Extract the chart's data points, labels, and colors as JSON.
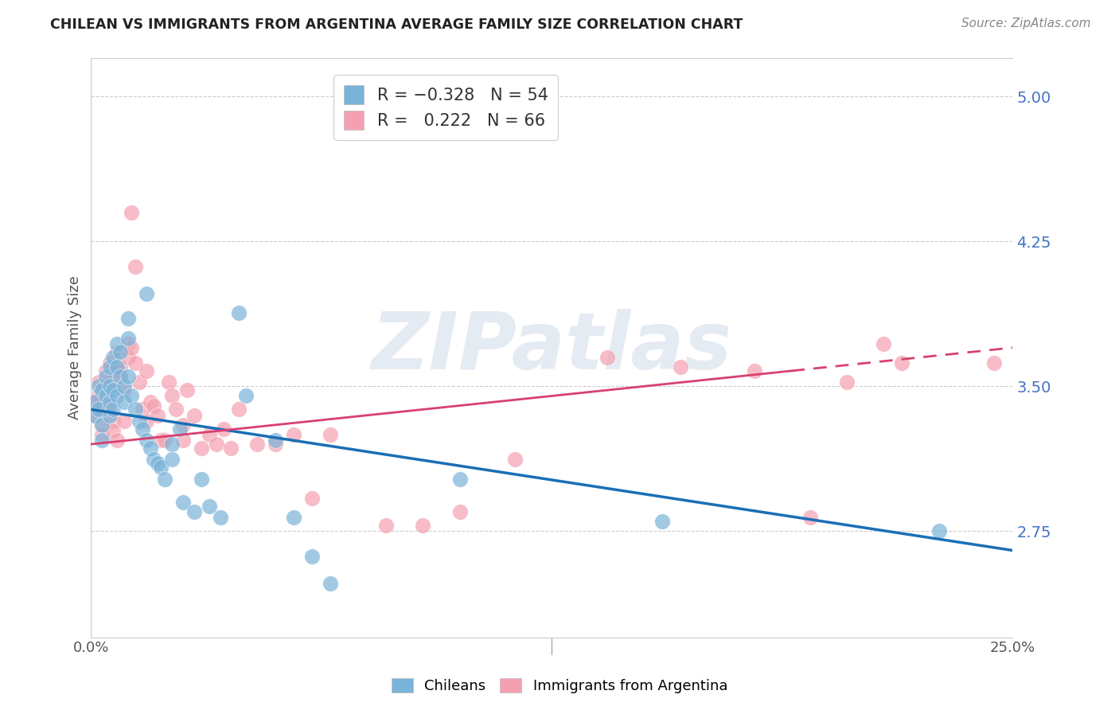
{
  "title": "CHILEAN VS IMMIGRANTS FROM ARGENTINA AVERAGE FAMILY SIZE CORRELATION CHART",
  "source": "Source: ZipAtlas.com",
  "ylabel": "Average Family Size",
  "yticks": [
    2.75,
    3.5,
    4.25,
    5.0
  ],
  "ymin": 2.2,
  "ymax": 5.2,
  "xmin": 0.0,
  "xmax": 0.25,
  "watermark": "ZIPatlas",
  "chileans_color": "#7ab3d9",
  "argentina_color": "#f4a0b0",
  "line_blue": "#1a6fb5",
  "line_pink": "#d94070",
  "chileans": {
    "x": [
      0.001,
      0.001,
      0.002,
      0.002,
      0.003,
      0.003,
      0.003,
      0.004,
      0.004,
      0.005,
      0.005,
      0.005,
      0.005,
      0.006,
      0.006,
      0.006,
      0.007,
      0.007,
      0.007,
      0.008,
      0.008,
      0.009,
      0.009,
      0.01,
      0.01,
      0.01,
      0.011,
      0.012,
      0.013,
      0.014,
      0.015,
      0.015,
      0.016,
      0.017,
      0.018,
      0.019,
      0.02,
      0.022,
      0.022,
      0.024,
      0.025,
      0.028,
      0.03,
      0.032,
      0.035,
      0.04,
      0.042,
      0.05,
      0.055,
      0.06,
      0.065,
      0.1,
      0.155,
      0.23
    ],
    "y": [
      3.42,
      3.35,
      3.5,
      3.38,
      3.48,
      3.3,
      3.22,
      3.55,
      3.45,
      3.6,
      3.5,
      3.42,
      3.35,
      3.65,
      3.48,
      3.38,
      3.72,
      3.6,
      3.45,
      3.68,
      3.55,
      3.5,
      3.42,
      3.85,
      3.75,
      3.55,
      3.45,
      3.38,
      3.32,
      3.28,
      3.98,
      3.22,
      3.18,
      3.12,
      3.1,
      3.08,
      3.02,
      3.2,
      3.12,
      3.28,
      2.9,
      2.85,
      3.02,
      2.88,
      2.82,
      3.88,
      3.45,
      3.22,
      2.82,
      2.62,
      2.48,
      3.02,
      2.8,
      2.75
    ]
  },
  "argentina": {
    "x": [
      0.001,
      0.001,
      0.002,
      0.002,
      0.003,
      0.003,
      0.003,
      0.004,
      0.004,
      0.005,
      0.005,
      0.005,
      0.006,
      0.006,
      0.007,
      0.007,
      0.007,
      0.008,
      0.008,
      0.009,
      0.009,
      0.01,
      0.01,
      0.011,
      0.011,
      0.012,
      0.012,
      0.013,
      0.014,
      0.015,
      0.015,
      0.016,
      0.017,
      0.018,
      0.019,
      0.02,
      0.021,
      0.022,
      0.023,
      0.025,
      0.025,
      0.026,
      0.028,
      0.03,
      0.032,
      0.034,
      0.036,
      0.038,
      0.04,
      0.045,
      0.05,
      0.055,
      0.06,
      0.065,
      0.08,
      0.09,
      0.1,
      0.115,
      0.14,
      0.16,
      0.18,
      0.195,
      0.205,
      0.215,
      0.22,
      0.245
    ],
    "y": [
      3.42,
      3.35,
      3.52,
      3.45,
      3.38,
      3.3,
      3.25,
      3.58,
      3.5,
      3.62,
      3.52,
      3.4,
      3.32,
      3.27,
      3.68,
      3.58,
      3.22,
      3.6,
      3.55,
      3.48,
      3.32,
      3.72,
      3.65,
      4.4,
      3.7,
      4.12,
      3.62,
      3.52,
      3.38,
      3.58,
      3.32,
      3.42,
      3.4,
      3.35,
      3.22,
      3.22,
      3.52,
      3.45,
      3.38,
      3.3,
      3.22,
      3.48,
      3.35,
      3.18,
      3.25,
      3.2,
      3.28,
      3.18,
      3.38,
      3.2,
      3.2,
      3.25,
      2.92,
      3.25,
      2.78,
      2.78,
      2.85,
      3.12,
      3.65,
      3.6,
      3.58,
      2.82,
      3.52,
      3.72,
      3.62,
      3.62
    ]
  },
  "chi_line": {
    "x0": 0.0,
    "y0": 3.38,
    "x1": 0.25,
    "y1": 2.65
  },
  "arg_line_solid": {
    "x0": 0.0,
    "y0": 3.2,
    "x1": 0.19,
    "y1": 3.58
  },
  "arg_line_dashed": {
    "x0": 0.19,
    "y0": 3.58,
    "x1": 0.25,
    "y1": 3.7
  }
}
